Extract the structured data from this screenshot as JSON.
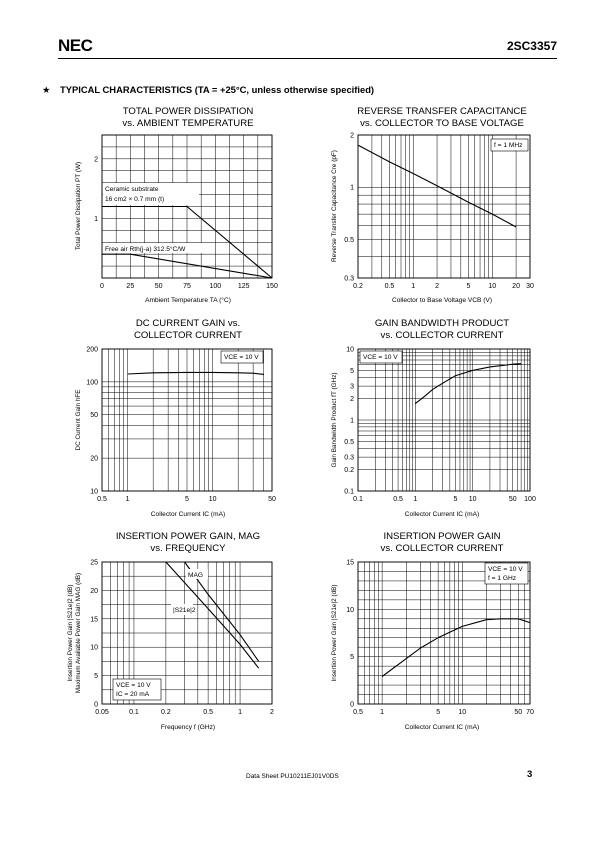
{
  "header": {
    "logo": "NEC",
    "part_number": "2SC3357"
  },
  "section": {
    "bullet": "★",
    "title": "TYPICAL  CHARACTERISTICS (TA = +25°C, unless otherwise specified)"
  },
  "footer": {
    "datasheet_no": "Data Sheet  PU10211EJ01V0DS",
    "page": "3"
  },
  "chart_data": [
    {
      "type": "line",
      "title": "TOTAL POWER DISSIPATION",
      "subtitle": "vs. AMBIENT TEMPERATURE",
      "xlabel": "Ambient Temperature  TA (°C)",
      "ylabel": "Total Power Dissipation  PT (W)",
      "xscale": "linear",
      "yscale": "linear",
      "xlim": [
        0,
        150
      ],
      "ylim": [
        0,
        2.4
      ],
      "xticks": [
        0,
        25,
        50,
        75,
        100,
        125,
        150
      ],
      "xtick_labels": [
        "0",
        "25",
        "50",
        "75",
        "100",
        "125",
        "150"
      ],
      "yticks": [
        1,
        2
      ],
      "ytick_labels": [
        "1",
        "2"
      ],
      "grid": true,
      "series": [
        {
          "name": "Ceramic substrate 16 cm2 × 0.7 mm (t)",
          "x": [
            0,
            75,
            150
          ],
          "y": [
            1.2,
            1.2,
            0
          ]
        },
        {
          "name": "Free air  Rth(j-a) 312.5°C/W",
          "x": [
            0,
            25,
            150
          ],
          "y": [
            0.4,
            0.4,
            0
          ]
        }
      ],
      "annotations": [
        "Ceramic substrate",
        "16 cm2 × 0.7 mm (t)",
        "Free air  Rth(j-a) 312.5°C/W"
      ]
    },
    {
      "type": "line",
      "title": "REVERSE TRANSFER CAPACITANCE",
      "subtitle": "vs. COLLECTOR TO BASE VOLTAGE",
      "xlabel": "Collector to Base Voltage  VCB (V)",
      "ylabel": "Reverse Transfer Capacitance  Cre (pF)",
      "xscale": "log",
      "yscale": "log",
      "xlim": [
        0.2,
        30
      ],
      "ylim": [
        0.3,
        2
      ],
      "xticks": [
        0.2,
        0.5,
        1,
        2,
        5,
        10,
        20,
        30
      ],
      "xtick_labels": [
        "0.2",
        "0.5",
        "1",
        "2",
        "5",
        "10",
        "20",
        "30"
      ],
      "yticks": [
        0.3,
        0.5,
        1,
        2
      ],
      "ytick_labels": [
        "0.3",
        "0.5",
        "1",
        "2"
      ],
      "grid": true,
      "series": [
        {
          "x": [
            0.2,
            0.5,
            1,
            2,
            5,
            10,
            20
          ],
          "y": [
            1.75,
            1.4,
            1.2,
            1.02,
            0.82,
            0.7,
            0.59
          ]
        }
      ],
      "annotations": [
        "f = 1 MHz"
      ]
    },
    {
      "type": "line",
      "title": "DC CURRENT GAIN vs.",
      "subtitle": "COLLECTOR CURRENT",
      "xlabel": "Collector Current  IC (mA)",
      "ylabel": "DC Current Gain  hFE",
      "xscale": "log",
      "yscale": "log",
      "xlim": [
        0.5,
        50
      ],
      "ylim": [
        10,
        200
      ],
      "xticks": [
        0.5,
        1,
        5,
        10,
        50
      ],
      "xtick_labels": [
        "0.5",
        "1",
        "5",
        "10",
        "50"
      ],
      "yticks": [
        10,
        20,
        50,
        100,
        200
      ],
      "ytick_labels": [
        "10",
        "20",
        "50",
        "100",
        "200"
      ],
      "grid": true,
      "series": [
        {
          "x": [
            1,
            2,
            5,
            10,
            20,
            30,
            40
          ],
          "y": [
            118,
            121,
            122,
            122,
            121,
            120,
            117
          ]
        }
      ],
      "annotations": [
        "VCE = 10 V"
      ]
    },
    {
      "type": "line",
      "title": "GAIN BANDWIDTH PRODUCT",
      "subtitle": "vs. COLLECTOR CURRENT",
      "xlabel": "Collector Current  IC (mA)",
      "ylabel": "Gain Bandwidth Product  fT (GHz)",
      "xscale": "log",
      "yscale": "log",
      "xlim": [
        0.1,
        100
      ],
      "ylim": [
        0.1,
        10
      ],
      "xticks": [
        0.1,
        0.5,
        1,
        5,
        10,
        50,
        100
      ],
      "xtick_labels": [
        "0.1",
        "0.5",
        "1",
        "5",
        "10",
        "50",
        "100"
      ],
      "yticks": [
        0.1,
        0.2,
        0.3,
        0.5,
        1,
        2,
        3,
        5,
        10
      ],
      "ytick_labels": [
        "0.1",
        "0.2",
        "0.3",
        "0.5",
        "1",
        "2",
        "3",
        "5",
        "10"
      ],
      "grid": true,
      "series": [
        {
          "x": [
            1,
            1.5,
            2,
            3,
            5,
            10,
            20,
            50,
            70
          ],
          "y": [
            1.7,
            2.2,
            2.7,
            3.3,
            4.2,
            5.0,
            5.6,
            6.1,
            6.2
          ]
        }
      ],
      "annotations": [
        "VCE = 10 V"
      ]
    },
    {
      "type": "line",
      "title": "INSERTION POWER GAIN, MAG",
      "subtitle": "vs. FREQUENCY",
      "xlabel": "Frequency  f (GHz)",
      "ylabel": "Insertion Power Gain  |S21e|2 (dB) / Maximum Available Power Gain  MAG (dB)",
      "xscale": "log",
      "yscale": "linear",
      "xlim": [
        0.05,
        2
      ],
      "ylim": [
        0,
        25
      ],
      "xticks": [
        0.05,
        0.1,
        0.2,
        0.5,
        1,
        2
      ],
      "xtick_labels": [
        "0.05",
        "0.1",
        "0.2",
        "0.5",
        "1",
        "2"
      ],
      "yticks": [
        0,
        5,
        10,
        15,
        20,
        25
      ],
      "ytick_labels": [
        "0",
        "5",
        "10",
        "15",
        "20",
        "25"
      ],
      "grid": true,
      "series": [
        {
          "name": "MAG",
          "x": [
            0.3,
            0.5,
            1,
            1.5
          ],
          "y": [
            25,
            19.3,
            12.2,
            7.5
          ]
        },
        {
          "name": "|S21e|2",
          "x": [
            0.2,
            0.5,
            1,
            1.5
          ],
          "y": [
            25,
            16.8,
            10.5,
            6.3
          ]
        }
      ],
      "annotations": [
        "MAG",
        "|S21e|2",
        "VCE = 10 V",
        "IC = 20 mA"
      ]
    },
    {
      "type": "line",
      "title": "INSERTION POWER GAIN",
      "subtitle": "vs. COLLECTOR CURRENT",
      "xlabel": "Collector Current  IC (mA)",
      "ylabel": "Insertion Power Gain  |S21e|2 (dB)",
      "xscale": "log",
      "yscale": "linear",
      "xlim": [
        0.5,
        70
      ],
      "ylim": [
        0,
        15
      ],
      "xticks": [
        0.5,
        1,
        5,
        10,
        50,
        70
      ],
      "xtick_labels": [
        "0.5",
        "1",
        "5",
        "10",
        "50",
        "70"
      ],
      "yticks": [
        0,
        5,
        10,
        15
      ],
      "ytick_labels": [
        "0",
        "5",
        "10",
        "15"
      ],
      "grid": true,
      "series": [
        {
          "x": [
            1,
            2,
            3,
            5,
            7,
            10,
            20,
            30,
            50,
            70
          ],
          "y": [
            2.9,
            4.8,
            5.9,
            7.0,
            7.6,
            8.2,
            8.9,
            9.0,
            9.0,
            8.6
          ]
        }
      ],
      "annotations": [
        "VCE = 10 V",
        "f = 1 GHz"
      ]
    }
  ]
}
